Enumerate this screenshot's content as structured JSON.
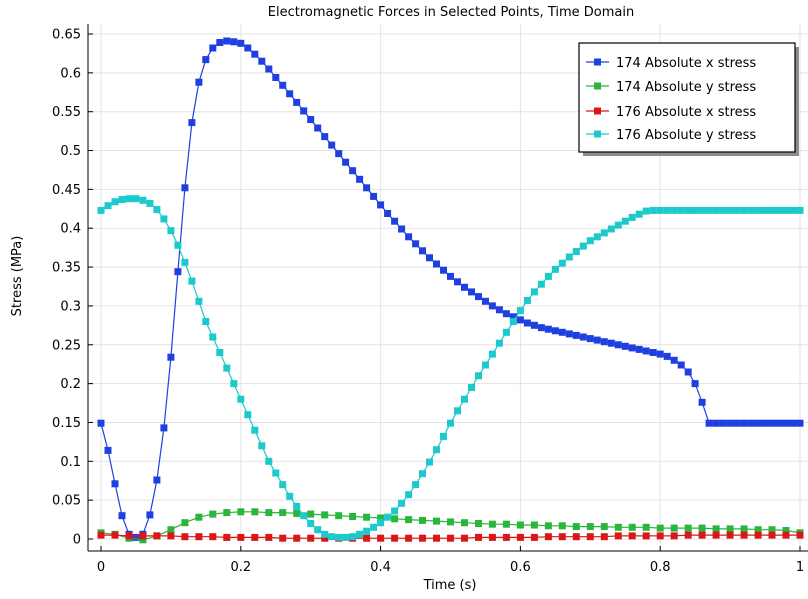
{
  "chart_data": {
    "type": "line",
    "title": "Electromagnetic Forces in Selected Points, Time Domain",
    "xlabel": "Time (s)",
    "ylabel": "Stress (MPa)",
    "xlim": [
      0,
      1
    ],
    "ylim": [
      -0.0075,
      0.655
    ],
    "xticks": [
      0,
      0.2,
      0.4,
      0.6,
      0.8,
      1
    ],
    "xtick_labels": [
      "0",
      "0.2",
      "0.4",
      "0.6",
      "0.8",
      "1"
    ],
    "yticks": [
      0,
      0.05,
      0.1,
      0.15,
      0.2,
      0.25,
      0.3,
      0.35,
      0.4,
      0.45,
      0.5,
      0.55,
      0.6,
      0.65
    ],
    "ytick_labels": [
      "0",
      "0.05",
      "0.1",
      "0.15",
      "0.2",
      "0.25",
      "0.3",
      "0.35",
      "0.4",
      "0.45",
      "0.5",
      "0.55",
      "0.6",
      "0.65"
    ],
    "grid": true,
    "legend_position": "top-right",
    "marker": "square",
    "series": [
      {
        "name": "174 Absolute x stress",
        "color": "#1f3fe0",
        "x": [
          0,
          0.01,
          0.02,
          0.03,
          0.04,
          0.05,
          0.06,
          0.07,
          0.08,
          0.09,
          0.1,
          0.11,
          0.12,
          0.13,
          0.14,
          0.15,
          0.16,
          0.17,
          0.18,
          0.19,
          0.2,
          0.21,
          0.22,
          0.23,
          0.24,
          0.25,
          0.26,
          0.27,
          0.28,
          0.29,
          0.3,
          0.31,
          0.32,
          0.33,
          0.34,
          0.35,
          0.36,
          0.37,
          0.38,
          0.39,
          0.4,
          0.41,
          0.42,
          0.43,
          0.44,
          0.45,
          0.46,
          0.47,
          0.48,
          0.49,
          0.5,
          0.51,
          0.52,
          0.53,
          0.54,
          0.55,
          0.56,
          0.57,
          0.58,
          0.59,
          0.6,
          0.61,
          0.62,
          0.63,
          0.64,
          0.65,
          0.66,
          0.67,
          0.68,
          0.69,
          0.7,
          0.71,
          0.72,
          0.73,
          0.74,
          0.75,
          0.76,
          0.77,
          0.78,
          0.79,
          0.8,
          0.81,
          0.82,
          0.83,
          0.84,
          0.85,
          0.86,
          0.87,
          0.88,
          0.89,
          0.9,
          0.91,
          0.92,
          0.93,
          0.94,
          0.95,
          0.96,
          0.97,
          0.98,
          0.99,
          1
        ],
        "y": [
          0.149,
          0.114,
          0.071,
          0.03,
          0.006,
          0.002,
          0.006,
          0.031,
          0.076,
          0.143,
          0.234,
          0.344,
          0.452,
          0.536,
          0.588,
          0.617,
          0.632,
          0.639,
          0.641,
          0.64,
          0.638,
          0.632,
          0.624,
          0.615,
          0.605,
          0.594,
          0.584,
          0.573,
          0.562,
          0.551,
          0.54,
          0.529,
          0.518,
          0.507,
          0.496,
          0.485,
          0.474,
          0.463,
          0.452,
          0.441,
          0.43,
          0.419,
          0.409,
          0.399,
          0.389,
          0.38,
          0.371,
          0.362,
          0.354,
          0.346,
          0.338,
          0.331,
          0.324,
          0.318,
          0.312,
          0.306,
          0.3,
          0.295,
          0.29,
          0.286,
          0.282,
          0.278,
          0.275,
          0.272,
          0.27,
          0.268,
          0.266,
          0.264,
          0.262,
          0.26,
          0.258,
          0.256,
          0.254,
          0.252,
          0.25,
          0.248,
          0.246,
          0.244,
          0.242,
          0.24,
          0.238,
          0.235,
          0.23,
          0.224,
          0.215,
          0.2,
          0.176,
          0.149,
          0.149,
          0.149,
          0.149,
          0.149,
          0.149,
          0.149,
          0.149,
          0.149,
          0.149,
          0.149,
          0.149,
          0.149,
          0.149
        ]
      },
      {
        "name": "174 Absolute y stress",
        "color": "#2ab53c",
        "x": [
          0,
          0.02,
          0.04,
          0.06,
          0.08,
          0.1,
          0.12,
          0.14,
          0.16,
          0.18,
          0.2,
          0.22,
          0.24,
          0.26,
          0.28,
          0.3,
          0.32,
          0.34,
          0.36,
          0.38,
          0.4,
          0.42,
          0.44,
          0.46,
          0.48,
          0.5,
          0.52,
          0.54,
          0.56,
          0.58,
          0.6,
          0.62,
          0.64,
          0.66,
          0.68,
          0.7,
          0.72,
          0.74,
          0.76,
          0.78,
          0.8,
          0.82,
          0.84,
          0.86,
          0.88,
          0.9,
          0.92,
          0.94,
          0.96,
          0.98,
          1
        ],
        "y": [
          0.008,
          0.006,
          0.001,
          -0.001,
          0.004,
          0.012,
          0.021,
          0.028,
          0.032,
          0.034,
          0.035,
          0.035,
          0.034,
          0.034,
          0.033,
          0.032,
          0.031,
          0.03,
          0.029,
          0.028,
          0.027,
          0.026,
          0.025,
          0.024,
          0.023,
          0.022,
          0.021,
          0.02,
          0.019,
          0.019,
          0.018,
          0.018,
          0.017,
          0.017,
          0.016,
          0.016,
          0.016,
          0.015,
          0.015,
          0.015,
          0.014,
          0.014,
          0.014,
          0.014,
          0.013,
          0.013,
          0.013,
          0.012,
          0.012,
          0.011,
          0.008
        ]
      },
      {
        "name": "176 Absolute x stress",
        "color": "#d81818",
        "x": [
          0,
          0.02,
          0.04,
          0.06,
          0.08,
          0.1,
          0.12,
          0.14,
          0.16,
          0.18,
          0.2,
          0.22,
          0.24,
          0.26,
          0.28,
          0.3,
          0.32,
          0.34,
          0.36,
          0.38,
          0.4,
          0.42,
          0.44,
          0.46,
          0.48,
          0.5,
          0.52,
          0.54,
          0.56,
          0.58,
          0.6,
          0.62,
          0.64,
          0.66,
          0.68,
          0.7,
          0.72,
          0.74,
          0.76,
          0.78,
          0.8,
          0.82,
          0.84,
          0.86,
          0.88,
          0.9,
          0.92,
          0.94,
          0.96,
          0.98,
          1
        ],
        "y": [
          0.005,
          0.005,
          0.004,
          0.004,
          0.004,
          0.004,
          0.003,
          0.003,
          0.003,
          0.002,
          0.002,
          0.002,
          0.002,
          0.001,
          0.001,
          0.001,
          0.001,
          0.001,
          0.001,
          0.001,
          0.001,
          0.001,
          0.001,
          0.001,
          0.001,
          0.001,
          0.001,
          0.002,
          0.002,
          0.002,
          0.002,
          0.002,
          0.003,
          0.003,
          0.003,
          0.003,
          0.003,
          0.004,
          0.004,
          0.004,
          0.004,
          0.004,
          0.005,
          0.005,
          0.005,
          0.005,
          0.005,
          0.005,
          0.005,
          0.005,
          0.005
        ]
      },
      {
        "name": "176 Absolute y stress",
        "color": "#1cc9cc",
        "x": [
          0,
          0.01,
          0.02,
          0.03,
          0.04,
          0.05,
          0.06,
          0.07,
          0.08,
          0.09,
          0.1,
          0.11,
          0.12,
          0.13,
          0.14,
          0.15,
          0.16,
          0.17,
          0.18,
          0.19,
          0.2,
          0.21,
          0.22,
          0.23,
          0.24,
          0.25,
          0.26,
          0.27,
          0.28,
          0.29,
          0.3,
          0.31,
          0.32,
          0.33,
          0.34,
          0.35,
          0.36,
          0.37,
          0.38,
          0.39,
          0.4,
          0.41,
          0.42,
          0.43,
          0.44,
          0.45,
          0.46,
          0.47,
          0.48,
          0.49,
          0.5,
          0.51,
          0.52,
          0.53,
          0.54,
          0.55,
          0.56,
          0.57,
          0.58,
          0.59,
          0.6,
          0.61,
          0.62,
          0.63,
          0.64,
          0.65,
          0.66,
          0.67,
          0.68,
          0.69,
          0.7,
          0.71,
          0.72,
          0.73,
          0.74,
          0.75,
          0.76,
          0.77,
          0.78,
          0.79,
          0.8,
          0.81,
          0.82,
          0.83,
          0.84,
          0.85,
          0.86,
          0.87,
          0.88,
          0.89,
          0.9,
          0.91,
          0.92,
          0.93,
          0.94,
          0.95,
          0.96,
          0.97,
          0.98,
          0.99,
          1
        ],
        "y": [
          0.423,
          0.429,
          0.434,
          0.437,
          0.438,
          0.438,
          0.436,
          0.432,
          0.424,
          0.412,
          0.397,
          0.378,
          0.356,
          0.332,
          0.306,
          0.28,
          0.26,
          0.24,
          0.22,
          0.2,
          0.18,
          0.16,
          0.14,
          0.12,
          0.1,
          0.085,
          0.07,
          0.055,
          0.042,
          0.03,
          0.02,
          0.012,
          0.006,
          0.003,
          0.002,
          0.002,
          0.003,
          0.006,
          0.01,
          0.015,
          0.021,
          0.028,
          0.036,
          0.046,
          0.057,
          0.07,
          0.084,
          0.099,
          0.115,
          0.132,
          0.149,
          0.165,
          0.18,
          0.195,
          0.21,
          0.224,
          0.238,
          0.252,
          0.266,
          0.28,
          0.294,
          0.307,
          0.318,
          0.328,
          0.338,
          0.347,
          0.355,
          0.363,
          0.37,
          0.377,
          0.384,
          0.389,
          0.394,
          0.399,
          0.404,
          0.409,
          0.414,
          0.418,
          0.422,
          0.423,
          0.423,
          0.423,
          0.423,
          0.423,
          0.423,
          0.423,
          0.423,
          0.423,
          0.423,
          0.423,
          0.423,
          0.423,
          0.423,
          0.423,
          0.423,
          0.423,
          0.423,
          0.423,
          0.423,
          0.423,
          0.423
        ]
      }
    ]
  }
}
